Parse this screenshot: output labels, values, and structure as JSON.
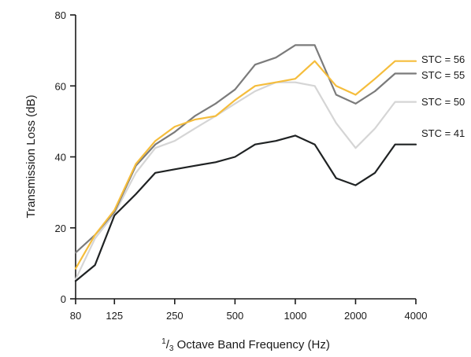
{
  "chart_data": {
    "type": "line",
    "title": "",
    "xlabel": {
      "numerator": "1",
      "slash": "/",
      "denominator": "3",
      "text": " Octave Band Frequency (Hz)"
    },
    "ylabel": "Transmission Loss (dB)",
    "x_scale": "log",
    "x_ticks": [
      80,
      125,
      250,
      500,
      1000,
      2000,
      4000
    ],
    "x_tick_labels": [
      "80",
      "125",
      "250",
      "500",
      "1000",
      "2000",
      "4000"
    ],
    "xlim": [
      80,
      4000
    ],
    "ylim": [
      0,
      80
    ],
    "y_ticks": [
      0,
      20,
      40,
      60,
      80
    ],
    "y_tick_labels": [
      "0",
      "20",
      "40",
      "60",
      "80"
    ],
    "grid": false,
    "legend": "labels at right end of each line",
    "x": [
      80,
      100,
      125,
      160,
      200,
      250,
      315,
      400,
      500,
      630,
      800,
      1000,
      1250,
      1600,
      2000,
      2500,
      3150,
      4000
    ],
    "series": [
      {
        "name": "STC = 56",
        "color": "#f5bd3c",
        "values": [
          8.5,
          18,
          25,
          38,
          44.5,
          48.5,
          50.5,
          51.5,
          56,
          60,
          61,
          62,
          67,
          60,
          57.5,
          62,
          67,
          67
        ]
      },
      {
        "name": "STC = 55",
        "color": "#7b7b7b",
        "values": [
          13,
          18,
          24.5,
          37.5,
          43.5,
          47,
          51.5,
          55,
          59,
          66,
          68,
          71.5,
          71.5,
          57.5,
          55,
          58.5,
          63.5,
          63.5
        ]
      },
      {
        "name": "STC = 50",
        "color": "#d5d5d5",
        "values": [
          5.5,
          17,
          24,
          35.5,
          42.5,
          44.5,
          48,
          51.5,
          55,
          58.5,
          61,
          61,
          60,
          49.5,
          42.5,
          48,
          55.5,
          55.5
        ]
      },
      {
        "name": "STC = 41",
        "color": "#1f2223",
        "values": [
          5,
          9.5,
          23.5,
          29.5,
          35.5,
          36.5,
          37.5,
          38.5,
          40,
          43.5,
          44.5,
          46,
          43.5,
          34,
          32,
          35.5,
          43.5,
          43.5
        ]
      }
    ]
  }
}
